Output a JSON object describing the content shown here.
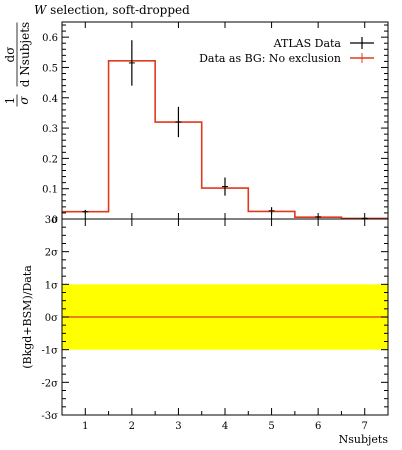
{
  "title_prefix": "W",
  "title_rest": " selection, soft-dropped",
  "chart_data": [
    {
      "type": "line",
      "title": "W selection, soft-dropped",
      "ylabel": "1/σ dσ/d Nsubjets",
      "xlabel": "Nsubjets",
      "xlim": [
        0.5,
        7.5
      ],
      "ylim": [
        0,
        0.65
      ],
      "x_ticks": [
        1,
        2,
        3,
        4,
        5,
        6,
        7
      ],
      "y_ticks": [
        "0",
        "0.1",
        "0.2",
        "0.3",
        "0.4",
        "0.5",
        "0.6"
      ],
      "legend_position": "top-right",
      "series": [
        {
          "name": "ATLAS Data",
          "style": "points-with-errors",
          "color": "#000000",
          "x": [
            1,
            2,
            3,
            4,
            5,
            6,
            7
          ],
          "y": [
            0.024,
            0.515,
            0.32,
            0.107,
            0.027,
            0.007,
            0.002
          ],
          "yerr": [
            0.006,
            0.075,
            0.05,
            0.03,
            0.012,
            0.004,
            0.002
          ]
        },
        {
          "name": "Data as BG: No exclusion",
          "style": "step-histogram",
          "color": "#e03a1e",
          "bin_edges": [
            0.5,
            1.5,
            2.5,
            3.5,
            4.5,
            5.5,
            6.5,
            7.5
          ],
          "values": [
            0.024,
            0.522,
            0.32,
            0.102,
            0.025,
            0.006,
            0.002
          ]
        }
      ]
    },
    {
      "type": "line",
      "ylabel": "(Bkgd+BSM)/Data",
      "xlabel": "Nsubjets",
      "xlim": [
        0.5,
        7.5
      ],
      "ylim": [
        -3,
        3
      ],
      "y_ticks": [
        "-3σ",
        "-2σ",
        "-1σ",
        "0σ",
        "1σ",
        "2σ",
        "3σ"
      ],
      "band": {
        "low": -1,
        "high": 1,
        "color": "#ffff00"
      },
      "series": [
        {
          "name": "",
          "color": "#e03a1e",
          "x": [
            0.5,
            7.5
          ],
          "y": [
            0,
            0
          ]
        }
      ]
    }
  ]
}
